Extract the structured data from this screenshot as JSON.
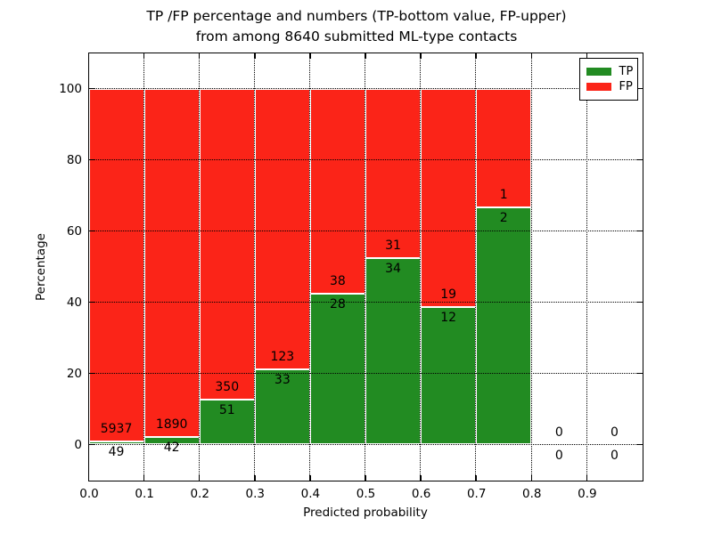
{
  "chart_data": {
    "type": "bar",
    "stacked": true,
    "title_line1": "TP /FP percentage and numbers (TP-bottom value, FP-upper)",
    "title_line2": "from among 8640 submitted ML-type contacts",
    "xlabel": "Predicted probability",
    "ylabel": "Percentage",
    "x_tick_labels": [
      "0.0",
      "0.1",
      "0.2",
      "0.3",
      "0.4",
      "0.5",
      "0.6",
      "0.7",
      "0.8",
      "0.9"
    ],
    "y_tick_values": [
      0,
      20,
      40,
      60,
      80,
      100
    ],
    "xlim": [
      0.0,
      1.0
    ],
    "ylim": [
      -10,
      110
    ],
    "grid": true,
    "bin_width": 0.1,
    "bins": [
      {
        "range": [
          0.0,
          0.1
        ],
        "tp": 49,
        "fp": 5937
      },
      {
        "range": [
          0.1,
          0.2
        ],
        "tp": 42,
        "fp": 1890
      },
      {
        "range": [
          0.2,
          0.3
        ],
        "tp": 51,
        "fp": 350
      },
      {
        "range": [
          0.3,
          0.4
        ],
        "tp": 33,
        "fp": 123
      },
      {
        "range": [
          0.4,
          0.5
        ],
        "tp": 28,
        "fp": 38
      },
      {
        "range": [
          0.5,
          0.6
        ],
        "tp": 34,
        "fp": 31
      },
      {
        "range": [
          0.6,
          0.7
        ],
        "tp": 12,
        "fp": 19
      },
      {
        "range": [
          0.7,
          0.8
        ],
        "tp": 2,
        "fp": 1
      },
      {
        "range": [
          0.8,
          0.9
        ],
        "tp": 0,
        "fp": 0
      },
      {
        "range": [
          0.9,
          1.0
        ],
        "tp": 0,
        "fp": 0
      }
    ],
    "colors": {
      "tp": "#228b22",
      "fp": "#fb2418"
    },
    "legend": {
      "position": "upper-right",
      "items": [
        {
          "label": "TP",
          "color": "#228b22"
        },
        {
          "label": "FP",
          "color": "#fb2418"
        }
      ]
    }
  }
}
